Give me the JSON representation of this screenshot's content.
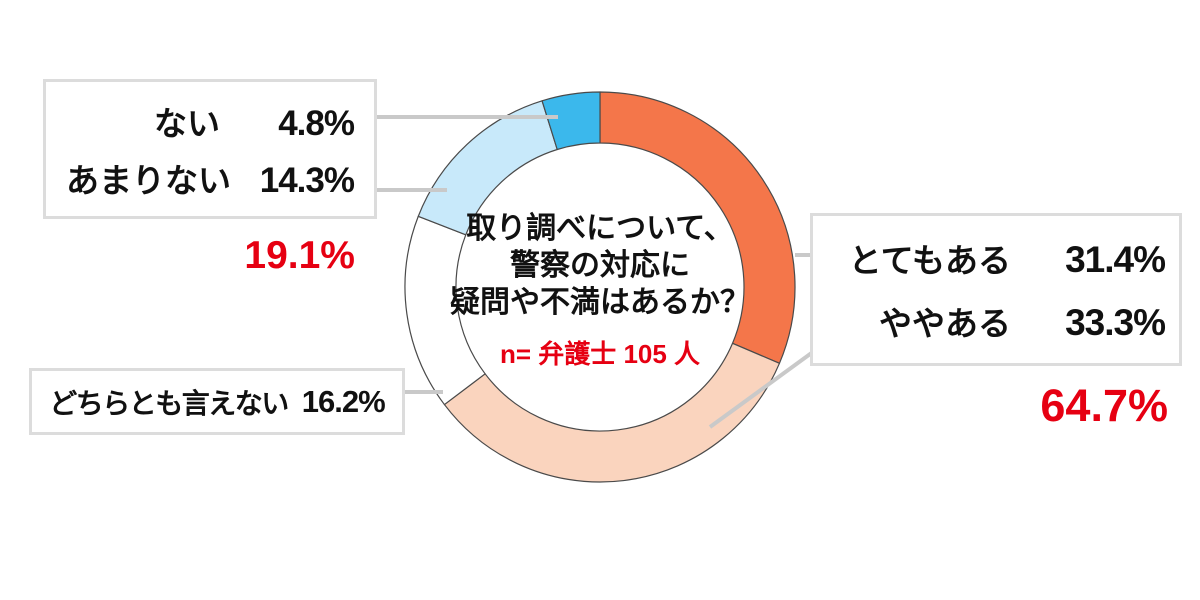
{
  "chart_data": {
    "type": "pie",
    "variant": "donut",
    "title": "取り調べについて、警察の対応に疑問や不満はあるか？",
    "title_lines": [
      "取り調べについて、",
      "警察の対応に",
      "疑問や不満はあるか？"
    ],
    "sample_note": "n= 弁護士 105 人",
    "categories": [
      "とてもある",
      "ややある",
      "どちらとも言えない",
      "あまりない",
      "ない"
    ],
    "values": [
      31.4,
      33.3,
      16.2,
      14.3,
      4.8
    ],
    "colors": [
      "#f4764a",
      "#fad4be",
      "#ffffff",
      "#c8e9fa",
      "#3bb8ec"
    ],
    "start_angle": "top",
    "direction": "clockwise",
    "subtotals": [
      {
        "label": "とてもある + ややある",
        "value": 64.7
      },
      {
        "label": "ない + あまりない",
        "value": 19.1
      }
    ]
  },
  "labels": {
    "negative_box": {
      "rows": [
        {
          "label": "ない",
          "value": "4.8%"
        },
        {
          "label": "あまりない",
          "value": "14.3%"
        }
      ]
    },
    "negative_total": "19.1%",
    "neutral_box": {
      "label": "どちらとも言えない",
      "value": "16.2%"
    },
    "positive_box": {
      "rows": [
        {
          "label": "とてもある",
          "value": "31.4%"
        },
        {
          "label": "ややある",
          "value": "33.3%"
        }
      ]
    },
    "positive_total": "64.7%"
  },
  "colors": {
    "accent_red": "#e60012",
    "segment_stroke": "#4a4a4a",
    "leader_line": "#c9c9c9",
    "box_border": "#dcdcdc",
    "text": "#111111",
    "background": "#ffffff"
  }
}
